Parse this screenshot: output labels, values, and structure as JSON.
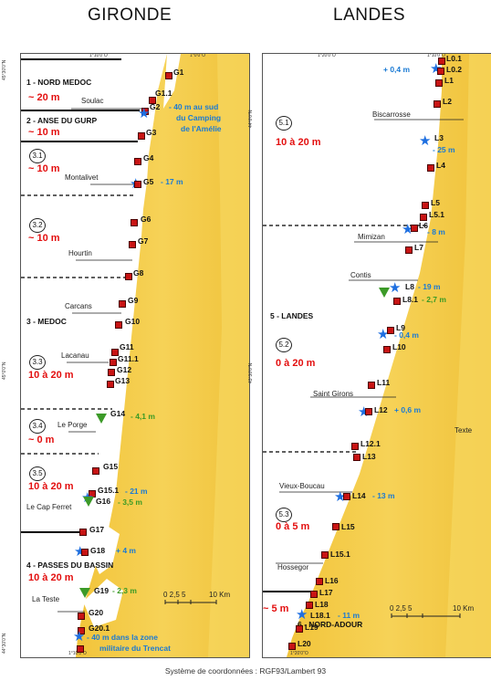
{
  "titles": {
    "left": "GIRONDE",
    "right": "LANDES"
  },
  "footer": "Système de coordonnées : RGF93/Lambert 93",
  "gironde": {
    "top_ticks": [
      "1°10'0\"O",
      "1°0'0\"O"
    ],
    "bottom_tick": "1°10'0\"O",
    "left_ticks": [
      "45°30'0\"N",
      "45°0'0\"N",
      "44°30'0\"N"
    ],
    "zones": [
      "1 - NORD MEDOC",
      "2 - ANSE DU GURP",
      "3 - MEDOC",
      "4 - PASSES DU BASSIN"
    ],
    "subzones": [
      "3.1",
      "3.2",
      "3.3",
      "3.4",
      "3.5"
    ],
    "depths": [
      "~ 20 m",
      "~ 10 m",
      "~ 10 m",
      "~ 10 m",
      "10 à 20 m",
      "~ 0 m",
      "10 à 20 m",
      "10 à 20 m"
    ],
    "places": [
      "Soulac",
      "Montalivet",
      "Hourtin",
      "Carcans",
      "Lacanau",
      "Le Porge",
      "Le Cap Ferret",
      "La Teste"
    ],
    "sites": [
      "G1",
      "G1.1",
      "G2",
      "G3",
      "G4",
      "G5",
      "G6",
      "G7",
      "G8",
      "G9",
      "G10",
      "G11",
      "G11.1",
      "G12",
      "G13",
      "G14",
      "G15",
      "G15.1",
      "G16",
      "G17",
      "G18",
      "G19",
      "G20",
      "G20.1"
    ],
    "blue_notes": [
      "- 40 m au sud",
      "du Camping",
      "de l'Amélie",
      "- 17 m",
      "- 21 m",
      "+ 4 m",
      "- 40 m dans la zone",
      "militaire du Trencat"
    ],
    "green_notes": [
      "- 4,1 m",
      "- 3,5 m",
      "- 2,3 m"
    ],
    "scale": {
      "ticks": "0  2,5  5",
      "end": "10 Km"
    }
  },
  "landes": {
    "top_ticks": [
      "1°20'0\"O",
      "1°10'0\"O"
    ],
    "bottom_tick": "1°20'0\"O",
    "left_ticks": [
      "44°0'0\"N",
      "43°30'0\"N"
    ],
    "zones": [
      "5 - LANDES",
      "6 - NORD-ADOUR"
    ],
    "subzones": [
      "5.1",
      "5.2",
      "5.3"
    ],
    "depths": [
      "10 à 20  m",
      "0 à 20  m",
      "0 à 5  m",
      "~ 5  m"
    ],
    "places": [
      "Biscarrosse",
      "Mimizan",
      "Contis",
      "Saint Girons",
      "Vieux-Boucau",
      "Hossegor"
    ],
    "texte": "Texte",
    "sites": [
      "L0.1",
      "L0.2",
      "L1",
      "L2",
      "L3",
      "L4",
      "L5",
      "L5.1",
      "L6",
      "L7",
      "L8",
      "L8.1",
      "L9",
      "L10",
      "L11",
      "L12",
      "L12.1",
      "L13",
      "L14",
      "L15",
      "L15.1",
      "L16",
      "L17",
      "L18",
      "L18.1",
      "L19",
      "L20"
    ],
    "blue_notes": [
      "+ 0,4  m",
      "- 25 m",
      "- 8 m",
      "- 19 m",
      "- 0,4 m",
      "+ 0,6 m",
      "- 13 m",
      "- 11 m"
    ],
    "green_notes": [
      "- 2,7 m"
    ],
    "scale": {
      "ticks": "0  2,5  5",
      "end": "10 Km"
    }
  }
}
